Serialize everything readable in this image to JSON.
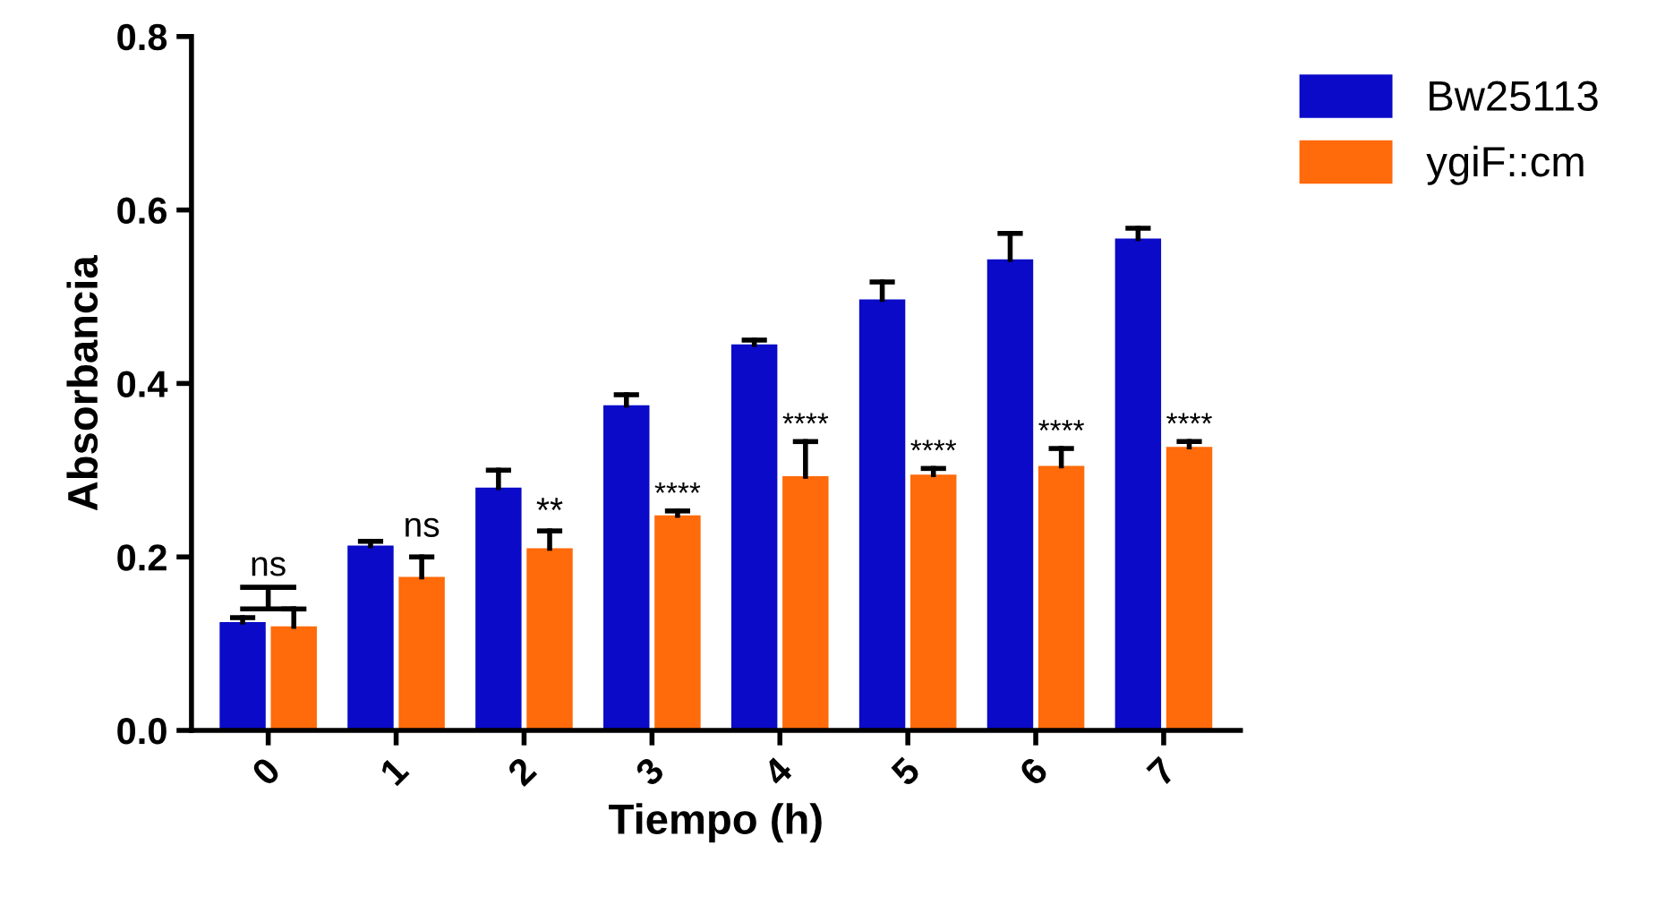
{
  "chart_data": {
    "type": "bar",
    "xlabel": "Tiempo (h)",
    "ylabel": "Absorbancia",
    "categories": [
      "0",
      "1",
      "2",
      "3",
      "4",
      "5",
      "6",
      "7"
    ],
    "series": [
      {
        "name": "Bw25113",
        "color": "#0a0ac8",
        "values": [
          0.125,
          0.213,
          0.28,
          0.375,
          0.445,
          0.497,
          0.543,
          0.567
        ],
        "errors": [
          [
            0.125,
            0.13
          ],
          [
            0.213,
            0.218
          ],
          [
            0.28,
            0.3
          ],
          [
            0.375,
            0.387
          ],
          [
            0.445,
            0.45
          ],
          [
            0.497,
            0.517
          ],
          [
            0.543,
            0.573
          ],
          [
            0.567,
            0.579
          ]
        ]
      },
      {
        "name": "ygiF::cm",
        "color": "#ff6a0a",
        "values": [
          0.12,
          0.177,
          0.21,
          0.248,
          0.293,
          0.295,
          0.305,
          0.327
        ],
        "errors": [
          [
            0.12,
            0.14
          ],
          [
            0.177,
            0.2
          ],
          [
            0.21,
            0.23
          ],
          [
            0.248,
            0.253
          ],
          [
            0.293,
            0.333
          ],
          [
            0.295,
            0.302
          ],
          [
            0.305,
            0.325
          ],
          [
            0.327,
            0.333
          ]
        ]
      }
    ],
    "ylim": [
      0,
      0.8
    ],
    "yticks": [
      {
        "value": 0,
        "label": "0.0"
      },
      {
        "value": 0.2,
        "label": "0.2"
      },
      {
        "value": 0.4,
        "label": "0.4"
      },
      {
        "value": 0.6,
        "label": "0.6"
      },
      {
        "value": 0.8,
        "label": "0.8"
      }
    ],
    "grid": false,
    "legend": "top right",
    "annotations": [
      "ns",
      {
        "text": "ns",
        "x": "1",
        "y": 0.215
      },
      {
        "text": "**",
        "x": "2",
        "y": 0.232
      },
      {
        "text": "****",
        "x": "3",
        "y": 0.255
      },
      {
        "text": "****",
        "x": "4",
        "y": 0.335
      },
      {
        "text": "****",
        "x": "5",
        "y": 0.304
      },
      {
        "text": "****",
        "x": "6",
        "y": 0.327
      },
      {
        "text": "****",
        "x": "7",
        "y": 0.335
      }
    ]
  }
}
